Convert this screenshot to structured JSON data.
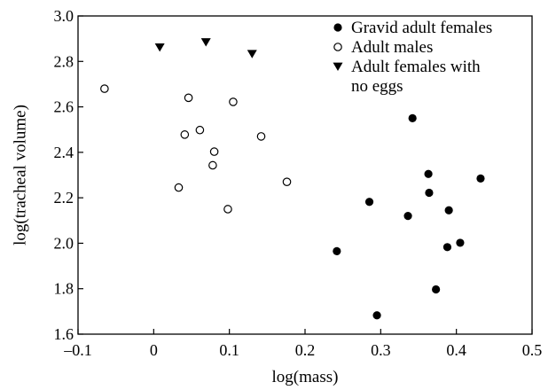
{
  "chart_data": {
    "type": "scatter",
    "title": "",
    "xlabel": "log(mass)",
    "ylabel": "log(tracheal volume)",
    "xlim": [
      -0.1,
      0.5
    ],
    "ylim": [
      1.6,
      3.0
    ],
    "x_ticks": [
      -0.1,
      0,
      0.1,
      0.2,
      0.3,
      0.4,
      0.5
    ],
    "x_tick_labels": [
      "–0.1",
      "0",
      "0.1",
      "0.2",
      "0.3",
      "0.4",
      "0.5"
    ],
    "y_ticks": [
      1.6,
      1.8,
      2.0,
      2.2,
      2.4,
      2.6,
      2.8,
      3.0
    ],
    "y_tick_labels": [
      "1.6",
      "1.8",
      "2.0",
      "2.2",
      "2.4",
      "2.6",
      "2.8",
      "3.0"
    ],
    "grid": false,
    "legend_position": "top-right",
    "series": [
      {
        "name": "Gravid adult females",
        "marker": "filled-circle",
        "color": "#000000",
        "points": [
          {
            "x": 0.242,
            "y": 1.965
          },
          {
            "x": 0.285,
            "y": 2.182
          },
          {
            "x": 0.295,
            "y": 1.683
          },
          {
            "x": 0.336,
            "y": 2.12
          },
          {
            "x": 0.342,
            "y": 2.55
          },
          {
            "x": 0.363,
            "y": 2.305
          },
          {
            "x": 0.364,
            "y": 2.222
          },
          {
            "x": 0.373,
            "y": 1.797
          },
          {
            "x": 0.388,
            "y": 1.983
          },
          {
            "x": 0.39,
            "y": 2.145
          },
          {
            "x": 0.405,
            "y": 2.002
          },
          {
            "x": 0.432,
            "y": 2.285
          }
        ]
      },
      {
        "name": "Adult males",
        "marker": "open-circle",
        "color": "#000000",
        "points": [
          {
            "x": -0.065,
            "y": 2.68
          },
          {
            "x": 0.033,
            "y": 2.245
          },
          {
            "x": 0.041,
            "y": 2.478
          },
          {
            "x": 0.046,
            "y": 2.64
          },
          {
            "x": 0.061,
            "y": 2.498
          },
          {
            "x": 0.078,
            "y": 2.343
          },
          {
            "x": 0.08,
            "y": 2.403
          },
          {
            "x": 0.098,
            "y": 2.15
          },
          {
            "x": 0.105,
            "y": 2.622
          },
          {
            "x": 0.142,
            "y": 2.47
          },
          {
            "x": 0.176,
            "y": 2.27
          }
        ]
      },
      {
        "name": "Adult females with no eggs",
        "name_lines": [
          "Adult females with",
          "no eggs"
        ],
        "marker": "filled-triangle-down",
        "color": "#000000",
        "points": [
          {
            "x": 0.008,
            "y": 2.862
          },
          {
            "x": 0.069,
            "y": 2.885
          },
          {
            "x": 0.13,
            "y": 2.833
          }
        ]
      }
    ]
  }
}
